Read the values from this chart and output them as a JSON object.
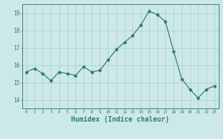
{
  "x": [
    0,
    1,
    2,
    3,
    4,
    5,
    6,
    7,
    8,
    9,
    10,
    11,
    12,
    13,
    14,
    15,
    16,
    17,
    18,
    19,
    20,
    21,
    22,
    23
  ],
  "y": [
    15.6,
    15.8,
    15.5,
    15.1,
    15.6,
    15.5,
    15.4,
    15.9,
    15.6,
    15.7,
    16.3,
    16.9,
    17.3,
    17.7,
    18.3,
    19.1,
    18.9,
    18.5,
    16.8,
    15.2,
    14.6,
    14.1,
    14.6,
    14.8
  ],
  "line_color": "#2e7d6e",
  "marker": "D",
  "marker_size": 2,
  "bg_color": "#cce8ea",
  "grid_color": "#b0cfd2",
  "tick_color": "#2e7d6e",
  "axis_color": "#2e7d6e",
  "xlabel": "Humidex (Indice chaleur)",
  "xlabel_fontsize": 7,
  "ylabel_ticks": [
    14,
    15,
    16,
    17,
    18,
    19
  ],
  "xlim": [
    -0.5,
    23.5
  ],
  "ylim": [
    13.5,
    19.5
  ]
}
